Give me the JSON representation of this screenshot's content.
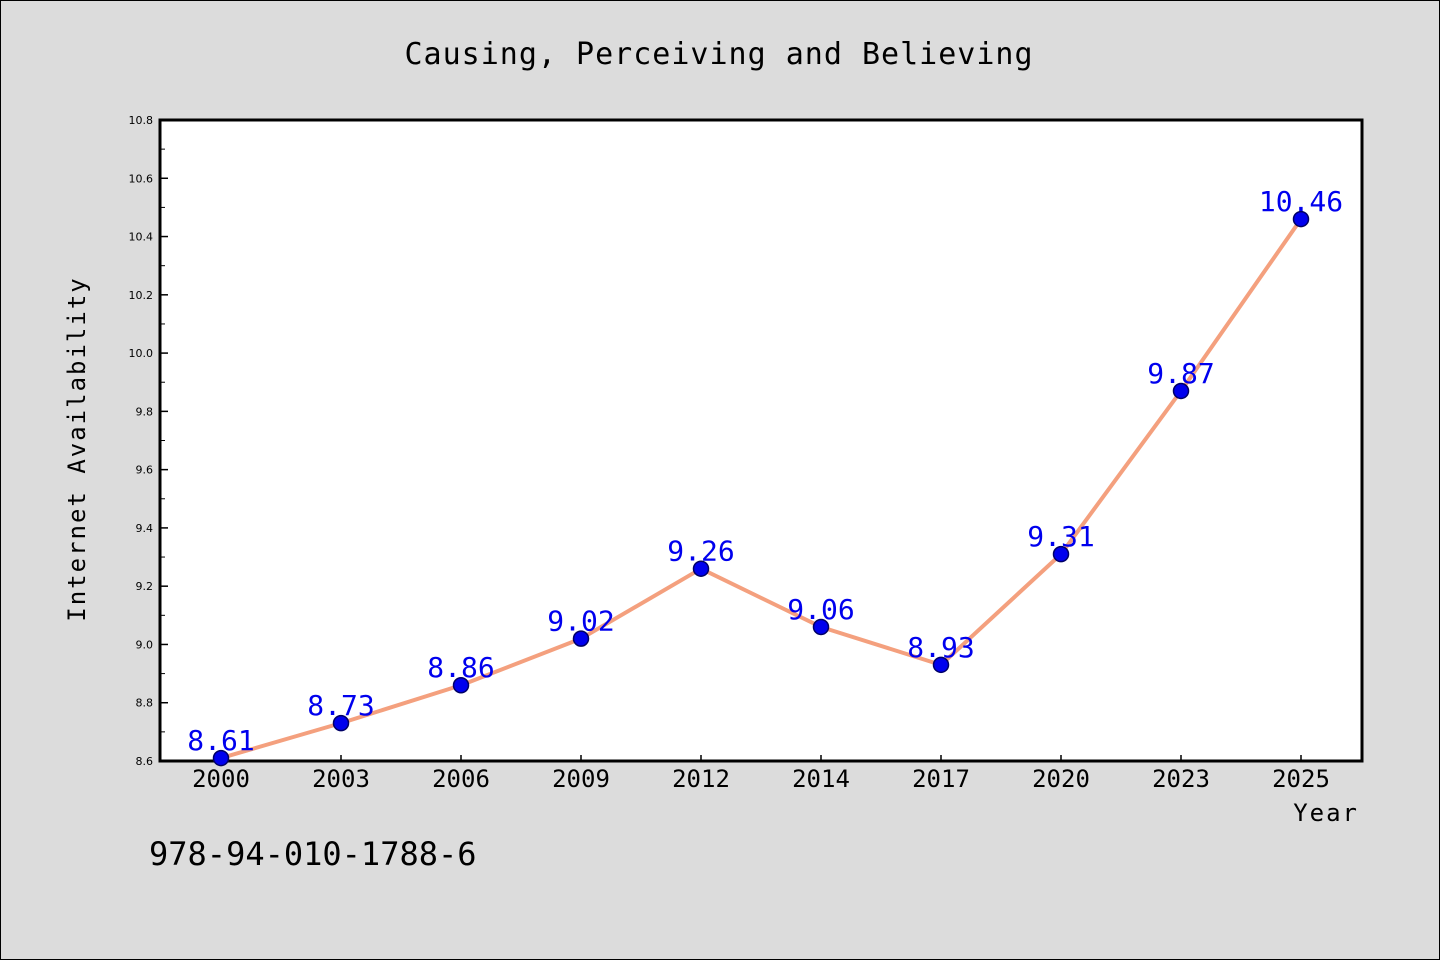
{
  "chart_data": {
    "type": "line",
    "title": "Causing, Perceiving and Believing",
    "xlabel": "Year",
    "ylabel": "Internet Availability",
    "categories": [
      "2000",
      "2003",
      "2006",
      "2009",
      "2012",
      "2014",
      "2017",
      "2020",
      "2023",
      "2025"
    ],
    "series": [
      {
        "values": [
          8.61,
          8.73,
          8.86,
          9.02,
          9.26,
          9.06,
          8.93,
          9.31,
          9.87,
          10.46
        ],
        "data_labels": [
          "8.61",
          "8.73",
          "8.86",
          "9.02",
          "9.26",
          "9.06",
          "8.93",
          "9.31",
          "9.87",
          "10.46"
        ]
      }
    ],
    "ylim": [
      8.6,
      10.8
    ],
    "y_ticks": [
      "8.6",
      "8.8",
      "9.0",
      "9.2",
      "9.4",
      "9.6",
      "9.8",
      "10.0",
      "10.2",
      "10.4",
      "10.6",
      "10.8"
    ],
    "y_minor_tick_step": 0.1,
    "grid": false,
    "legend": "none",
    "colors": {
      "background": "#dcdcdc",
      "plot_background": "#ffffff",
      "line": "#f4a07e",
      "marker_fill": "#0000ee",
      "marker_stroke": "#000066",
      "data_label": "#0000ee"
    }
  },
  "footer": {
    "isbn": "978-94-010-1788-6"
  }
}
